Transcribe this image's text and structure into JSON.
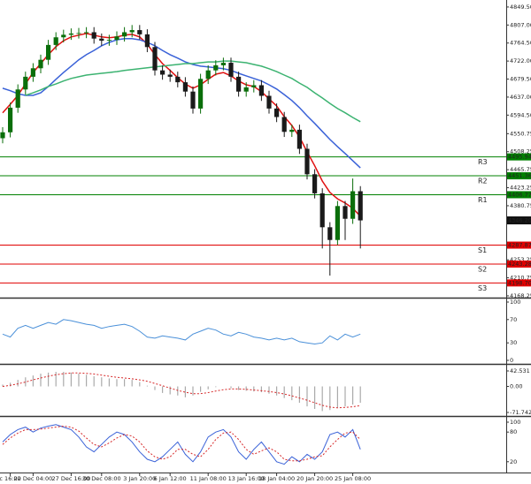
{
  "chart_data": [
    {
      "type": "candlestick",
      "categories": [
        null,
        "c 16:00",
        null,
        null,
        "22 Dec 04:00",
        null,
        null,
        null,
        null,
        "27 Dec 16:00",
        null,
        null,
        null,
        "30 Dec 08:00",
        null,
        null,
        null,
        null,
        "3 Jan 20:00",
        null,
        null,
        null,
        "6 Jan 12:00",
        null,
        null,
        null,
        null,
        "11 Jan 08:00",
        null,
        null,
        null,
        null,
        "13 Jan 16:00",
        null,
        null,
        null,
        "18 Jan 04:00",
        null,
        null,
        null,
        null,
        "20 Jan 20:00",
        null,
        null,
        null,
        null,
        "25 Jan 08:00",
        null
      ],
      "open": [
        4540,
        4554,
        4612,
        4655,
        4685,
        4705,
        4725,
        4760,
        4778,
        4784,
        4787,
        4788,
        4790,
        4775,
        4770,
        4772,
        4780,
        4790,
        4795,
        4785,
        4755,
        4700,
        4690,
        4685,
        4672,
        4650,
        4610,
        4680,
        4700,
        4712,
        4718,
        4685,
        4650,
        4660,
        4665,
        4640,
        4610,
        4590,
        4555,
        4560,
        4515,
        4455,
        4410,
        4330,
        4300,
        4380,
        4350,
        4415
      ],
      "high": [
        4566,
        4624,
        4667,
        4697,
        4717,
        4737,
        4772,
        4790,
        4796,
        4799,
        4800,
        4802,
        4802,
        4787,
        4784,
        4792,
        4802,
        4807,
        4807,
        4797,
        4767,
        4712,
        4702,
        4697,
        4684,
        4662,
        4692,
        4712,
        4724,
        4730,
        4730,
        4697,
        4672,
        4677,
        4677,
        4652,
        4622,
        4602,
        4572,
        4572,
        4527,
        4467,
        4422,
        4342,
        4392,
        4392,
        4445,
        4427
      ],
      "low": [
        4528,
        4542,
        4600,
        4643,
        4673,
        4693,
        4713,
        4748,
        4766,
        4772,
        4775,
        4776,
        4763,
        4758,
        4758,
        4760,
        4768,
        4778,
        4773,
        4743,
        4688,
        4678,
        4673,
        4660,
        4638,
        4598,
        4598,
        4668,
        4688,
        4700,
        4673,
        4638,
        4638,
        4648,
        4628,
        4598,
        4578,
        4543,
        4543,
        4503,
        4443,
        4398,
        4280,
        4216,
        4288,
        4300,
        4338,
        4280
      ],
      "close": [
        4554,
        4612,
        4655,
        4685,
        4705,
        4725,
        4760,
        4778,
        4784,
        4787,
        4788,
        4790,
        4775,
        4770,
        4772,
        4780,
        4790,
        4795,
        4785,
        4755,
        4700,
        4690,
        4685,
        4672,
        4650,
        4610,
        4680,
        4700,
        4712,
        4718,
        4685,
        4650,
        4660,
        4665,
        4640,
        4610,
        4590,
        4555,
        4560,
        4515,
        4455,
        4410,
        4330,
        4300,
        4380,
        4350,
        4415,
        4346.2
      ],
      "up_color": "#0a6e0a",
      "down_color": "#1a1a1a",
      "series": [
        {
          "color": "#e01010",
          "values": [
            4600,
            4620,
            4641,
            4668,
            4695,
            4716,
            4737,
            4756,
            4770,
            4779,
            4783,
            4787,
            4783,
            4779,
            4777,
            4779,
            4783,
            4785,
            4779,
            4762,
            4737,
            4716,
            4700,
            4683,
            4668,
            4658,
            4666,
            4679,
            4691,
            4695,
            4687,
            4675,
            4666,
            4662,
            4650,
            4633,
            4616,
            4591,
            4570,
            4543,
            4508,
            4475,
            4439,
            4412,
            4397,
            4387,
            4375,
            4356
          ]
        },
        {
          "color": "#3a62d8",
          "values": [
            4658,
            4652,
            4645,
            4641,
            4641,
            4647,
            4662,
            4679,
            4695,
            4710,
            4725,
            4737,
            4747,
            4758,
            4766,
            4772,
            4775,
            4775,
            4772,
            4766,
            4758,
            4747,
            4737,
            4729,
            4720,
            4714,
            4710,
            4708,
            4706,
            4704,
            4700,
            4693,
            4687,
            4681,
            4675,
            4666,
            4656,
            4643,
            4629,
            4612,
            4593,
            4575,
            4556,
            4537,
            4520,
            4504,
            4487,
            4470
          ]
        },
        {
          "color": "#3cb371",
          "values": [
            null,
            null,
            null,
            4641,
            4647,
            4654,
            4662,
            4668,
            4675,
            4681,
            4685,
            4689,
            4691,
            4693,
            4695,
            4697,
            4700,
            4702,
            4704,
            4706,
            4708,
            4710,
            4712,
            4714,
            4716,
            4716,
            4718,
            4720,
            4720,
            4722,
            4722,
            4720,
            4718,
            4714,
            4710,
            4704,
            4697,
            4689,
            4681,
            4670,
            4660,
            4647,
            4635,
            4622,
            4610,
            4600,
            4589,
            4579
          ]
        }
      ],
      "levels": [
        {
          "label": "R3",
          "value": 4495.94,
          "value_label": "4495.94",
          "color": "#008000"
        },
        {
          "label": "R2",
          "value": 4451.36,
          "value_label": "4451.36",
          "color": "#008000"
        },
        {
          "label": "R1",
          "value": 4406.77,
          "value_label": "4406.77",
          "color": "#008000"
        },
        {
          "label": "S1",
          "value": 4287.87,
          "value_label": "4287.87",
          "color": "#e00000"
        },
        {
          "label": "S2",
          "value": 4243.28,
          "value_label": "4243.28",
          "color": "#e00000"
        },
        {
          "label": "S3",
          "value": 4198.7,
          "value_label": "4198.70",
          "color": "#e00000"
        }
      ],
      "last_price": {
        "value": 4346.2,
        "label": "4346.20"
      },
      "ylim": [
        4164,
        4866
      ],
      "yticks": [
        {
          "value": 4849.5,
          "label": "4849.50"
        },
        {
          "value": 4807,
          "label": "4807.00"
        },
        {
          "value": 4764.5,
          "label": "4764.50"
        },
        {
          "value": 4722,
          "label": "4722.00"
        },
        {
          "value": 4679.5,
          "label": "4679.50"
        },
        {
          "value": 4637,
          "label": "4637.00"
        },
        {
          "value": 4594.5,
          "label": "4594.50"
        },
        4550.75,
        4508.25,
        4465.75,
        4423.25,
        4380.75,
        4253.25,
        4210.75,
        4168.25
      ]
    },
    {
      "type": "line",
      "ylim": [
        0,
        100
      ],
      "yticks": [
        100,
        70,
        30,
        0
      ],
      "series": [
        {
          "color": "#4a90d9",
          "values": [
            45,
            40,
            55,
            60,
            55,
            60,
            65,
            62,
            70,
            68,
            65,
            62,
            60,
            55,
            58,
            60,
            62,
            58,
            50,
            40,
            38,
            42,
            40,
            38,
            35,
            45,
            50,
            55,
            52,
            45,
            42,
            48,
            45,
            40,
            38,
            35,
            38,
            35,
            38,
            32,
            30,
            28,
            30,
            42,
            35,
            45,
            40,
            45
          ]
        }
      ]
    },
    {
      "type": "macd",
      "ylim": [
        -71.742,
        42.531
      ],
      "yticks": [
        42.531,
        {
          "value": 0,
          "label": "0.00"
        },
        -71.742
      ],
      "color": "#aaaaaa",
      "values": [
        5,
        10,
        18,
        25,
        30,
        35,
        38,
        40,
        40,
        38,
        35,
        32,
        28,
        25,
        22,
        20,
        20,
        18,
        12,
        2,
        -10,
        -18,
        -22,
        -25,
        -30,
        -25,
        -15,
        -8,
        -2,
        0,
        -5,
        -10,
        -12,
        -14,
        -16,
        -20,
        -25,
        -32,
        -38,
        -45,
        -55,
        -62,
        -68,
        -65,
        -58,
        -55,
        -50,
        -45
      ],
      "series": [
        {
          "color": "#d62728",
          "dashed": true,
          "values": [
            0,
            3,
            7,
            12,
            18,
            23,
            28,
            32,
            35,
            37,
            37,
            36,
            34,
            31,
            28,
            25,
            23,
            21,
            18,
            14,
            8,
            2,
            -5,
            -11,
            -16,
            -20,
            -20,
            -17,
            -13,
            -9,
            -7,
            -7,
            -8,
            -10,
            -12,
            -14,
            -17,
            -21,
            -26,
            -32,
            -38,
            -45,
            -52,
            -57,
            -59,
            -58,
            -56,
            -53
          ]
        }
      ]
    },
    {
      "type": "line",
      "ylim": [
        0,
        100
      ],
      "yticks": [
        100,
        80,
        20
      ],
      "series": [
        {
          "color": "#3a62d8",
          "values": [
            60,
            75,
            85,
            90,
            80,
            88,
            92,
            95,
            90,
            85,
            70,
            50,
            40,
            55,
            70,
            80,
            75,
            60,
            40,
            25,
            20,
            30,
            45,
            60,
            35,
            20,
            40,
            70,
            80,
            85,
            70,
            40,
            25,
            45,
            60,
            40,
            20,
            15,
            30,
            20,
            35,
            25,
            40,
            75,
            80,
            70,
            85,
            45
          ]
        },
        {
          "color": "#d62728",
          "dashed": true,
          "values": [
            55,
            68,
            78,
            85,
            85,
            86,
            88,
            90,
            92,
            90,
            82,
            68,
            55,
            50,
            58,
            68,
            75,
            72,
            60,
            42,
            30,
            25,
            30,
            45,
            45,
            35,
            30,
            45,
            65,
            78,
            80,
            65,
            45,
            35,
            42,
            48,
            40,
            25,
            22,
            22,
            25,
            30,
            32,
            50,
            65,
            78,
            80,
            65
          ]
        }
      ]
    }
  ]
}
